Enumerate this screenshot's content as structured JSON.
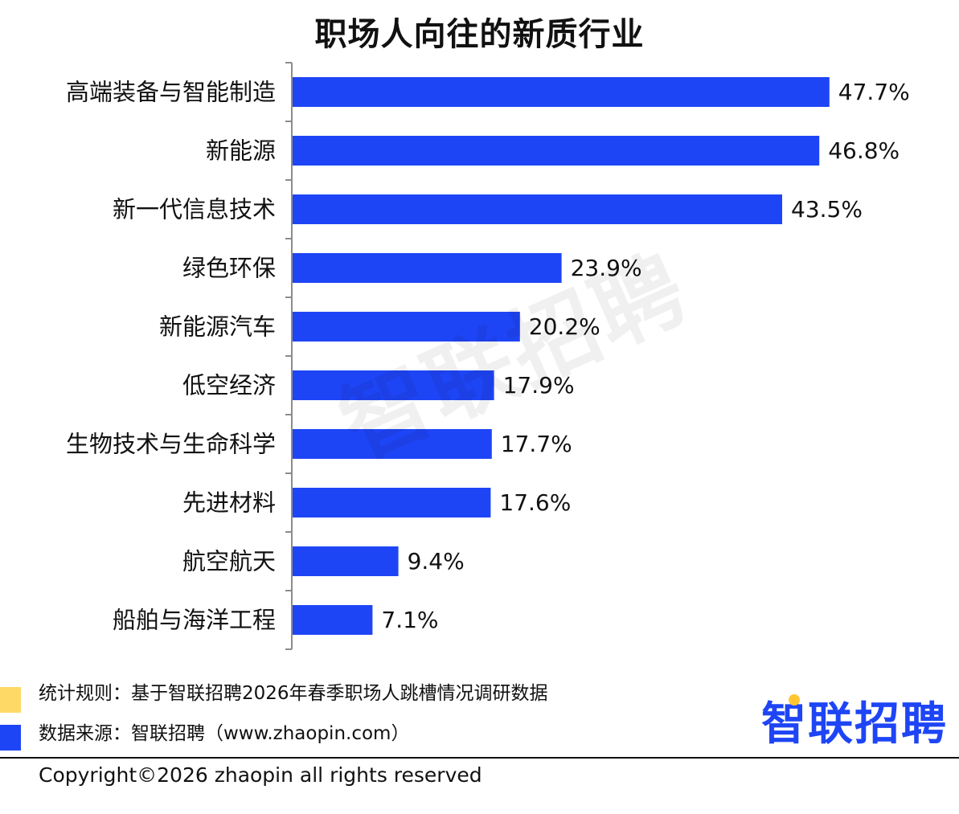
{
  "chart_data": {
    "type": "bar",
    "orientation": "horizontal",
    "title": "职场人向往的新质行业",
    "categories": [
      "高端装备与智能制造",
      "新能源",
      "新一代信息技术",
      "绿色环保",
      "新能源汽车",
      "低空经济",
      "生物技术与生命科学",
      "先进材料",
      "航空航天",
      "船舶与海洋工程"
    ],
    "values": [
      47.7,
      46.8,
      43.5,
      23.9,
      20.2,
      17.9,
      17.7,
      17.6,
      9.4,
      7.1
    ],
    "value_labels": [
      "47.7%",
      "46.8%",
      "43.5%",
      "23.9%",
      "20.2%",
      "17.9%",
      "17.7%",
      "17.6%",
      "9.4%",
      "7.1%"
    ],
    "unit": "%",
    "xlim": [
      0,
      50
    ],
    "grid": false,
    "bar_color": "#1E45F5"
  },
  "watermark": "智联招聘",
  "footnotes": {
    "rule": "统计规则：基于智联招聘2026年春季职场人跳槽情况调研数据",
    "source": "数据来源：智联招聘（www.zhaopin.com）",
    "rule_marker_color": "#FFD966",
    "source_marker_color": "#1E45F5"
  },
  "logo": {
    "text": "智联招聘",
    "color": "#1E45F5",
    "accent_color": "#FFC533"
  },
  "copyright": "Copyright©2026 zhaopin all rights reserved"
}
